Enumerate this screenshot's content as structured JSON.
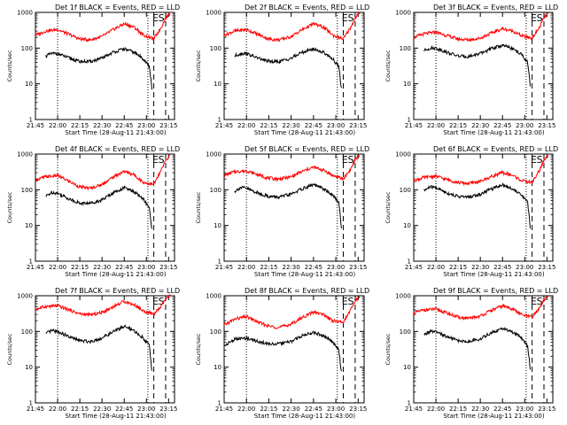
{
  "chart_data": {
    "type": "line",
    "layout": "3x3 grid of panels",
    "y_scale": "log",
    "ylim": [
      1,
      1000
    ],
    "y_ticks": [
      "1",
      "10",
      "100",
      "1000"
    ],
    "x_ticks": [
      "21:45",
      "22:00",
      "22:15",
      "22:30",
      "22:45",
      "23:00",
      "23:15"
    ],
    "xlabel": "Start Time (28-Aug-11 21:43:00)",
    "ylabel": "Counts/sec",
    "markers": [
      "E",
      "S"
    ],
    "colors": {
      "events": "#000000",
      "lld": "#ff0000"
    },
    "panels": [
      {
        "title": "Det 1f BLACK = Events, RED = LLD",
        "events": {
          "x": [
            "21:52",
            "21:56",
            "22:00",
            "22:08",
            "22:15",
            "22:22",
            "22:30",
            "22:37",
            "22:45",
            "22:52",
            "22:58",
            "23:02",
            "23:04"
          ],
          "y": [
            60,
            70,
            70,
            52,
            42,
            42,
            52,
            75,
            95,
            75,
            50,
            30,
            6
          ]
        },
        "lld": {
          "x": [
            "21:45",
            "21:52",
            "22:00",
            "22:08",
            "22:15",
            "22:22",
            "22:30",
            "22:37",
            "22:45",
            "22:52",
            "22:58",
            "23:05",
            "23:10",
            "23:13",
            "23:16"
          ],
          "y": [
            230,
            300,
            330,
            240,
            180,
            170,
            210,
            320,
            480,
            380,
            230,
            180,
            380,
            700,
            950
          ]
        }
      },
      {
        "title": "Det 2f BLACK = Events, RED = LLD",
        "events": {
          "x": [
            "21:52",
            "21:56",
            "22:00",
            "22:08",
            "22:15",
            "22:22",
            "22:30",
            "22:37",
            "22:45",
            "22:52",
            "22:58",
            "23:02",
            "23:04"
          ],
          "y": [
            60,
            70,
            70,
            52,
            42,
            42,
            52,
            75,
            95,
            75,
            50,
            30,
            6
          ]
        },
        "lld": {
          "x": [
            "21:45",
            "21:52",
            "22:00",
            "22:08",
            "22:15",
            "22:22",
            "22:30",
            "22:37",
            "22:45",
            "22:52",
            "22:58",
            "23:05",
            "23:10",
            "23:13",
            "23:16"
          ],
          "y": [
            230,
            300,
            330,
            240,
            180,
            170,
            210,
            320,
            480,
            380,
            230,
            180,
            380,
            700,
            950
          ]
        }
      },
      {
        "title": "Det 3f BLACK = Events, RED = LLD",
        "events": {
          "x": [
            "21:52",
            "21:56",
            "22:00",
            "22:08",
            "22:15",
            "22:22",
            "22:30",
            "22:37",
            "22:45",
            "22:52",
            "22:58",
            "23:02",
            "23:04"
          ],
          "y": [
            85,
            100,
            100,
            75,
            60,
            58,
            70,
            95,
            120,
            95,
            65,
            40,
            7
          ]
        },
        "lld": {
          "x": [
            "21:45",
            "21:52",
            "22:00",
            "22:08",
            "22:15",
            "22:22",
            "22:30",
            "22:37",
            "22:45",
            "22:52",
            "22:58",
            "23:05",
            "23:10",
            "23:13",
            "23:16"
          ],
          "y": [
            200,
            250,
            280,
            220,
            180,
            170,
            190,
            260,
            350,
            300,
            220,
            190,
            380,
            700,
            950
          ]
        }
      },
      {
        "title": "Det 4f BLACK = Events, RED = LLD",
        "events": {
          "x": [
            "21:52",
            "21:56",
            "22:00",
            "22:08",
            "22:15",
            "22:22",
            "22:30",
            "22:37",
            "22:45",
            "22:52",
            "22:58",
            "23:02",
            "23:04"
          ],
          "y": [
            65,
            85,
            80,
            55,
            42,
            42,
            52,
            80,
            115,
            85,
            55,
            30,
            6
          ]
        },
        "lld": {
          "x": [
            "21:45",
            "21:52",
            "22:00",
            "22:08",
            "22:15",
            "22:22",
            "22:30",
            "22:37",
            "22:45",
            "22:52",
            "22:58",
            "23:05",
            "23:10",
            "23:13",
            "23:16"
          ],
          "y": [
            190,
            230,
            250,
            170,
            120,
            110,
            140,
            220,
            330,
            260,
            160,
            140,
            350,
            650,
            950
          ]
        }
      },
      {
        "title": "Det 5f BLACK = Events, RED = LLD",
        "events": {
          "x": [
            "21:52",
            "21:56",
            "22:00",
            "22:08",
            "22:15",
            "22:22",
            "22:30",
            "22:37",
            "22:45",
            "22:52",
            "22:58",
            "23:02",
            "23:04"
          ],
          "y": [
            90,
            115,
            110,
            80,
            65,
            62,
            75,
            105,
            140,
            105,
            70,
            45,
            7
          ]
        },
        "lld": {
          "x": [
            "21:45",
            "21:52",
            "22:00",
            "22:08",
            "22:15",
            "22:22",
            "22:30",
            "22:37",
            "22:45",
            "22:52",
            "22:58",
            "23:05",
            "23:10",
            "23:13",
            "23:16"
          ],
          "y": [
            250,
            320,
            340,
            260,
            210,
            200,
            230,
            320,
            430,
            350,
            250,
            200,
            380,
            700,
            950
          ]
        }
      },
      {
        "title": "Det 6f BLACK = Events, RED = LLD",
        "events": {
          "x": [
            "21:52",
            "21:56",
            "22:00",
            "22:08",
            "22:15",
            "22:22",
            "22:30",
            "22:37",
            "22:45",
            "22:52",
            "22:58",
            "23:02",
            "23:04"
          ],
          "y": [
            95,
            120,
            115,
            80,
            65,
            62,
            75,
            105,
            140,
            105,
            70,
            45,
            7
          ]
        },
        "lld": {
          "x": [
            "21:45",
            "21:52",
            "22:00",
            "22:08",
            "22:15",
            "22:22",
            "22:30",
            "22:37",
            "22:45",
            "22:52",
            "22:58",
            "23:05",
            "23:10",
            "23:13",
            "23:16"
          ],
          "y": [
            180,
            220,
            240,
            190,
            160,
            150,
            170,
            230,
            300,
            250,
            180,
            160,
            350,
            650,
            950
          ]
        }
      },
      {
        "title": "Det 7f BLACK = Events, RED = LLD",
        "events": {
          "x": [
            "21:52",
            "21:56",
            "22:00",
            "22:08",
            "22:15",
            "22:22",
            "22:30",
            "22:37",
            "22:45",
            "22:52",
            "22:58",
            "23:02",
            "23:04"
          ],
          "y": [
            85,
            105,
            100,
            70,
            55,
            52,
            65,
            95,
            140,
            100,
            65,
            40,
            6
          ]
        },
        "lld": {
          "x": [
            "21:45",
            "21:52",
            "22:00",
            "22:08",
            "22:15",
            "22:22",
            "22:30",
            "22:37",
            "22:45",
            "22:52",
            "22:58",
            "23:05",
            "23:10",
            "23:13",
            "23:16"
          ],
          "y": [
            420,
            500,
            520,
            400,
            310,
            290,
            340,
            480,
            700,
            550,
            370,
            300,
            500,
            800,
            1000
          ]
        }
      },
      {
        "title": "Det 8f BLACK = Events, RED = LLD",
        "events": {
          "x": [
            "21:45",
            "21:52",
            "22:00",
            "22:08",
            "22:15",
            "22:22",
            "22:30",
            "22:37",
            "22:45",
            "22:52",
            "22:58",
            "23:02",
            "23:04"
          ],
          "y": [
            40,
            60,
            65,
            52,
            45,
            45,
            52,
            75,
            95,
            75,
            50,
            30,
            6
          ]
        },
        "lld": {
          "x": [
            "21:45",
            "21:52",
            "22:00",
            "22:08",
            "22:15",
            "22:22",
            "22:30",
            "22:37",
            "22:45",
            "22:52",
            "22:58",
            "23:05",
            "23:10",
            "23:13",
            "23:16"
          ],
          "y": [
            150,
            220,
            260,
            180,
            140,
            130,
            160,
            240,
            350,
            290,
            200,
            180,
            400,
            700,
            950
          ]
        }
      },
      {
        "title": "Det 9f BLACK = Events, RED = LLD",
        "events": {
          "x": [
            "21:52",
            "21:56",
            "22:00",
            "22:08",
            "22:15",
            "22:22",
            "22:30",
            "22:37",
            "22:45",
            "22:52",
            "22:58",
            "23:02",
            "23:04"
          ],
          "y": [
            80,
            100,
            95,
            70,
            55,
            52,
            62,
            90,
            120,
            95,
            65,
            40,
            7
          ]
        },
        "lld": {
          "x": [
            "21:45",
            "21:52",
            "22:00",
            "22:08",
            "22:15",
            "22:22",
            "22:30",
            "22:37",
            "22:45",
            "22:52",
            "22:58",
            "23:05",
            "23:10",
            "23:13",
            "23:16"
          ],
          "y": [
            330,
            400,
            420,
            320,
            250,
            230,
            270,
            380,
            520,
            430,
            290,
            250,
            450,
            750,
            1000
          ]
        }
      }
    ]
  }
}
